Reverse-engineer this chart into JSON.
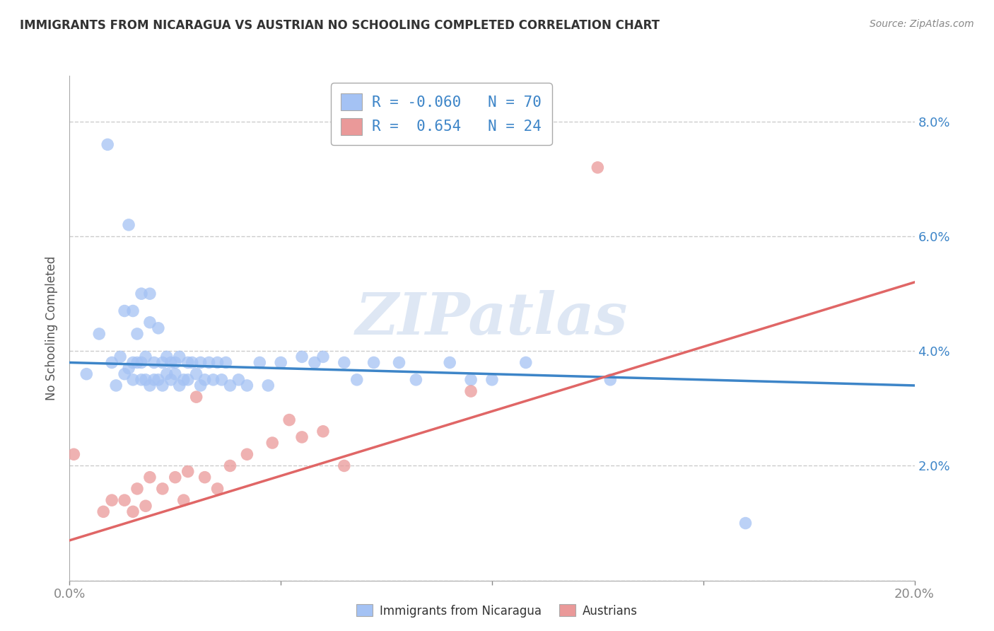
{
  "title": "IMMIGRANTS FROM NICARAGUA VS AUSTRIAN NO SCHOOLING COMPLETED CORRELATION CHART",
  "source": "Source: ZipAtlas.com",
  "ylabel": "No Schooling Completed",
  "xlim": [
    0.0,
    0.2
  ],
  "ylim": [
    0.0,
    0.088
  ],
  "xticks": [
    0.0,
    0.05,
    0.1,
    0.15,
    0.2
  ],
  "xtick_labels": [
    "0.0%",
    "",
    "",
    "",
    "20.0%"
  ],
  "yticks": [
    0.0,
    0.02,
    0.04,
    0.06,
    0.08
  ],
  "ytick_labels_right": [
    "",
    "2.0%",
    "4.0%",
    "6.0%",
    "8.0%"
  ],
  "legend_blue_r": "-0.060",
  "legend_blue_n": "70",
  "legend_pink_r": " 0.654",
  "legend_pink_n": "24",
  "blue_color": "#a4c2f4",
  "pink_color": "#ea9999",
  "blue_line_color": "#3d85c8",
  "pink_line_color": "#e06666",
  "background_color": "#ffffff",
  "grid_color": "#cccccc",
  "watermark_text": "ZIPatlas",
  "blue_scatter_x": [
    0.004,
    0.007,
    0.009,
    0.01,
    0.011,
    0.012,
    0.013,
    0.013,
    0.014,
    0.014,
    0.015,
    0.015,
    0.015,
    0.016,
    0.016,
    0.017,
    0.017,
    0.017,
    0.018,
    0.018,
    0.019,
    0.019,
    0.019,
    0.02,
    0.02,
    0.021,
    0.021,
    0.022,
    0.022,
    0.023,
    0.023,
    0.024,
    0.024,
    0.025,
    0.025,
    0.026,
    0.026,
    0.027,
    0.028,
    0.028,
    0.029,
    0.03,
    0.031,
    0.031,
    0.032,
    0.033,
    0.034,
    0.035,
    0.036,
    0.037,
    0.038,
    0.04,
    0.042,
    0.045,
    0.047,
    0.05,
    0.055,
    0.058,
    0.06,
    0.065,
    0.068,
    0.072,
    0.078,
    0.082,
    0.09,
    0.095,
    0.1,
    0.108,
    0.128,
    0.16
  ],
  "blue_scatter_y": [
    0.036,
    0.043,
    0.076,
    0.038,
    0.034,
    0.039,
    0.036,
    0.047,
    0.037,
    0.062,
    0.038,
    0.047,
    0.035,
    0.038,
    0.043,
    0.038,
    0.035,
    0.05,
    0.035,
    0.039,
    0.045,
    0.034,
    0.05,
    0.035,
    0.038,
    0.044,
    0.035,
    0.034,
    0.038,
    0.036,
    0.039,
    0.035,
    0.038,
    0.036,
    0.038,
    0.034,
    0.039,
    0.035,
    0.038,
    0.035,
    0.038,
    0.036,
    0.038,
    0.034,
    0.035,
    0.038,
    0.035,
    0.038,
    0.035,
    0.038,
    0.034,
    0.035,
    0.034,
    0.038,
    0.034,
    0.038,
    0.039,
    0.038,
    0.039,
    0.038,
    0.035,
    0.038,
    0.038,
    0.035,
    0.038,
    0.035,
    0.035,
    0.038,
    0.035,
    0.01
  ],
  "pink_scatter_x": [
    0.001,
    0.008,
    0.01,
    0.013,
    0.015,
    0.016,
    0.018,
    0.019,
    0.022,
    0.025,
    0.027,
    0.028,
    0.03,
    0.032,
    0.035,
    0.038,
    0.042,
    0.048,
    0.052,
    0.055,
    0.06,
    0.065,
    0.095,
    0.125
  ],
  "pink_scatter_y": [
    0.022,
    0.012,
    0.014,
    0.014,
    0.012,
    0.016,
    0.013,
    0.018,
    0.016,
    0.018,
    0.014,
    0.019,
    0.032,
    0.018,
    0.016,
    0.02,
    0.022,
    0.024,
    0.028,
    0.025,
    0.026,
    0.02,
    0.033,
    0.072
  ],
  "blue_line_x": [
    0.0,
    0.2
  ],
  "blue_line_y": [
    0.038,
    0.034
  ],
  "pink_line_x": [
    0.0,
    0.2
  ],
  "pink_line_y": [
    0.007,
    0.052
  ]
}
